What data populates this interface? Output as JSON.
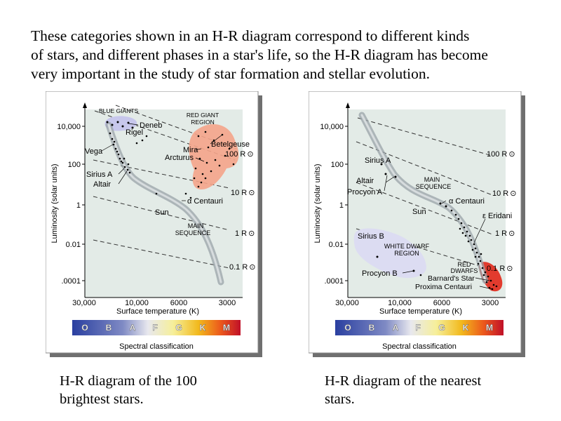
{
  "intro": {
    "line1": "These categories shown in an H-R diagram correspond to different kinds",
    "line2": "of stars, and different phases in a star's life, so the H-R diagram has become",
    "line3": "very important in the study of star formation and stellar evolution."
  },
  "axes": {
    "ylabel": "Luminosity (solar units)",
    "xlabel": "Surface temperature (K)",
    "yticks": [
      "10,000",
      "100",
      "1",
      "0.01",
      ".0001"
    ],
    "xticks": [
      "30,000",
      "10,000",
      "6000",
      "3000"
    ]
  },
  "spectral": {
    "title": "Spectral classification",
    "classes": [
      "O",
      "B",
      "A",
      "F",
      "G",
      "K",
      "M"
    ],
    "colors": [
      "#2a3fa0",
      "#5868b8",
      "#b9bfdc",
      "#f3f1e6",
      "#f2d21f",
      "#ef6a1e",
      "#c8142a"
    ]
  },
  "radii": [
    "100 R",
    "10 R",
    "1 R",
    "0.1 R"
  ],
  "left": {
    "caption_line1": "H-R diagram of the 100",
    "caption_line2": "brightest stars.",
    "labels": {
      "blue_giants": "BLUE GIANTS",
      "red_giant_1": "RED GIANT",
      "red_giant_2": "REGION",
      "deneb": "Deneb",
      "rigel": "Rigel",
      "betelgeuse": "Betelgeuse",
      "mira": "Mira",
      "arcturus": "Arcturus",
      "vega": "Vega",
      "sirius_a": "Sirius A",
      "altair": "Altair",
      "alpha_cen": "α Centauri",
      "sun": "Sun",
      "main_1": "MAIN",
      "main_2": "SEQUENCE"
    }
  },
  "right": {
    "caption_line1": "H-R diagram of the nearest",
    "caption_line2": "stars.",
    "labels": {
      "sirius_a": "Sirius A",
      "altair": "Altair",
      "procyon_a": "Procyon A",
      "main_1": "MAIN",
      "main_2": "SEQUENCE",
      "alpha_cen": "α Centauri",
      "sun": "Sun",
      "eps_eridani": "ε Eridani",
      "sirius_b": "Sirius B",
      "white_dwarf_1": "WHITE DWARF",
      "white_dwarf_2": "REGION",
      "red_dwarfs_1": "RED",
      "red_dwarfs_2": "DWARFS",
      "procyon_b": "Procyon B",
      "barnards": "Barnard's Star",
      "proxima": "Proxima Centauri"
    }
  }
}
